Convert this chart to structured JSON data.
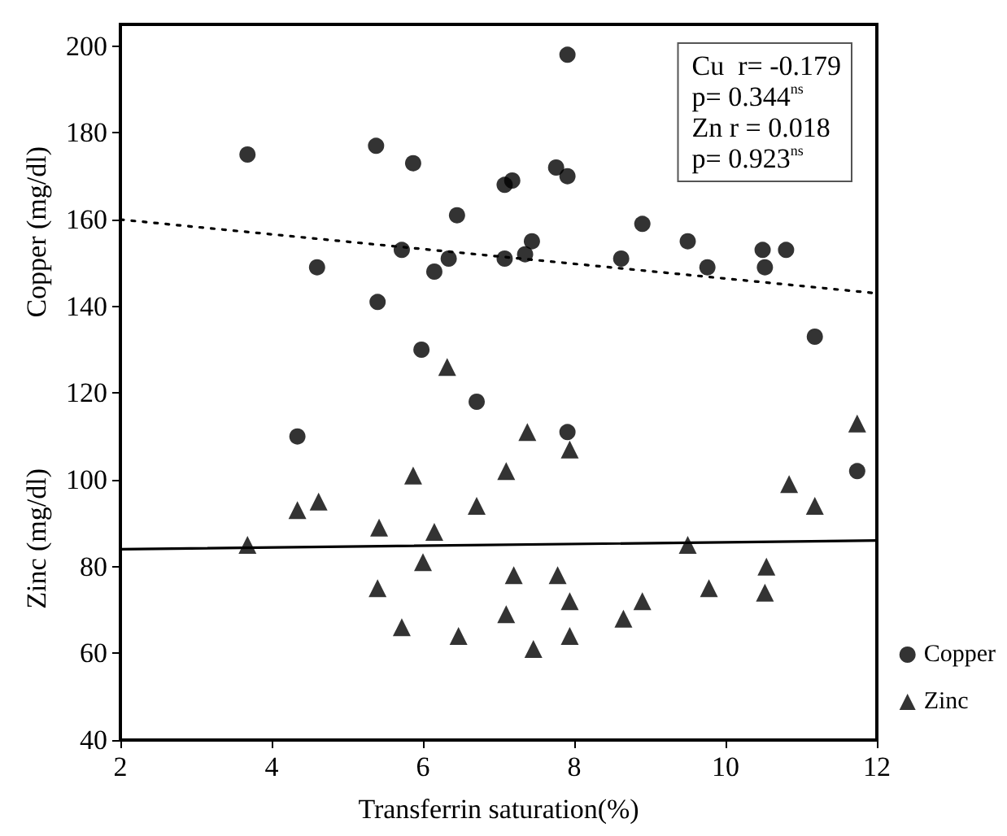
{
  "chart_data": {
    "type": "scatter",
    "xlabel": "Transferrin saturation(%)",
    "ylabel": "Copper (mg/dl)",
    "y2label": "Zinc (mg/dl)",
    "xlim": [
      2,
      12
    ],
    "xticks": [
      2,
      4,
      6,
      8,
      10,
      12
    ],
    "ylim": [
      40,
      205
    ],
    "yticks": [
      40,
      60,
      80,
      100,
      120,
      140,
      160,
      180,
      200
    ],
    "grid": false,
    "legend": "bottom right",
    "annotations": [
      "Cu  r= -0.179",
      "p= 0.344$^{ns}$",
      "Zn r = 0.018",
      "p= 0.923$^{ns}$"
    ],
    "series": [
      {
        "name": "Copper",
        "color": "#000000",
        "marker": "circle",
        "x": [
          3.68,
          5.38,
          5.87,
          4.6,
          5.72,
          6.45,
          6.15,
          6.34,
          5.4,
          5.98,
          6.71,
          7.08,
          7.18,
          7.08,
          7.91,
          7.76,
          7.91,
          7.44,
          7.35,
          8.62,
          8.9,
          9.5,
          9.76,
          10.49,
          10.8,
          10.52,
          11.18,
          4.34,
          7.91,
          11.74
        ],
        "values": [
          175,
          177,
          173,
          149,
          153,
          161,
          148,
          151,
          141,
          130,
          118,
          168,
          169,
          151,
          198,
          172,
          170,
          155,
          152,
          151,
          159,
          155,
          149,
          153,
          153,
          149,
          133,
          110,
          111,
          102
        ]
      },
      {
        "name": "Zinc",
        "color": "#000000",
        "marker": "triangle",
        "x": [
          6.32,
          3.68,
          4.34,
          4.62,
          5.42,
          5.87,
          6.15,
          6.0,
          5.4,
          5.72,
          6.47,
          6.71,
          7.1,
          7.2,
          7.1,
          7.38,
          7.94,
          7.78,
          7.94,
          7.46,
          7.94,
          8.65,
          8.9,
          9.5,
          9.78,
          10.54,
          10.52,
          10.84,
          11.18,
          11.74
        ],
        "values": [
          126,
          85,
          93,
          95,
          89,
          101,
          88,
          81,
          75,
          66,
          64,
          94,
          102,
          78,
          69,
          111,
          107,
          78,
          72,
          61,
          64,
          68,
          72,
          85,
          75,
          80,
          74,
          99,
          94,
          113
        ]
      },
      {
        "type": "line",
        "color": "#000000",
        "line_style": "dotted",
        "marker": "none",
        "x": [
          2,
          12
        ],
        "values": [
          160,
          143
        ]
      },
      {
        "type": "line",
        "color": "#000000",
        "line_style": "solid",
        "marker": "none",
        "x": [
          2,
          12
        ],
        "values": [
          84,
          86
        ]
      }
    ]
  }
}
